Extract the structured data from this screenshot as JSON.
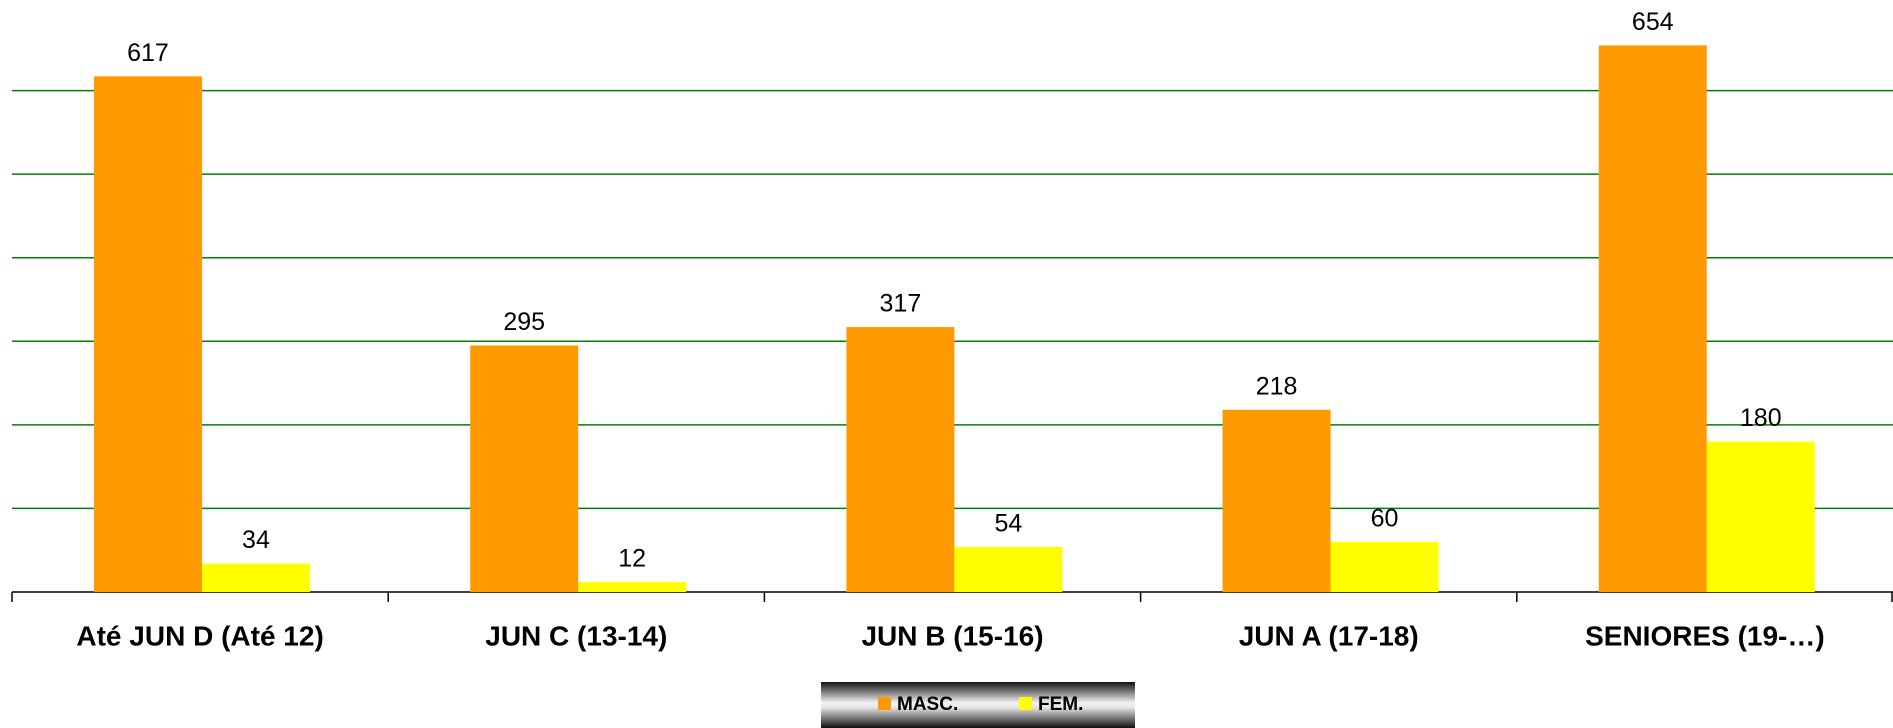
{
  "chart_data": {
    "type": "bar",
    "categories": [
      "Até JUN D (Até 12)",
      "JUN C (13-14)",
      "JUN B (15-16)",
      "JUN A (17-18)",
      "SENIORES (19-…)"
    ],
    "series": [
      {
        "name": "MASC.",
        "color": "#ff9900",
        "values": [
          617,
          295,
          317,
          218,
          654
        ]
      },
      {
        "name": "FEM.",
        "color": "#ffff00",
        "values": [
          34,
          12,
          54,
          60,
          180
        ]
      }
    ],
    "ylim": [
      0,
      700
    ],
    "yticks": [
      0,
      100,
      200,
      300,
      400,
      500,
      600
    ],
    "grid": true,
    "grid_color": "#008000",
    "legend": "bottom"
  }
}
